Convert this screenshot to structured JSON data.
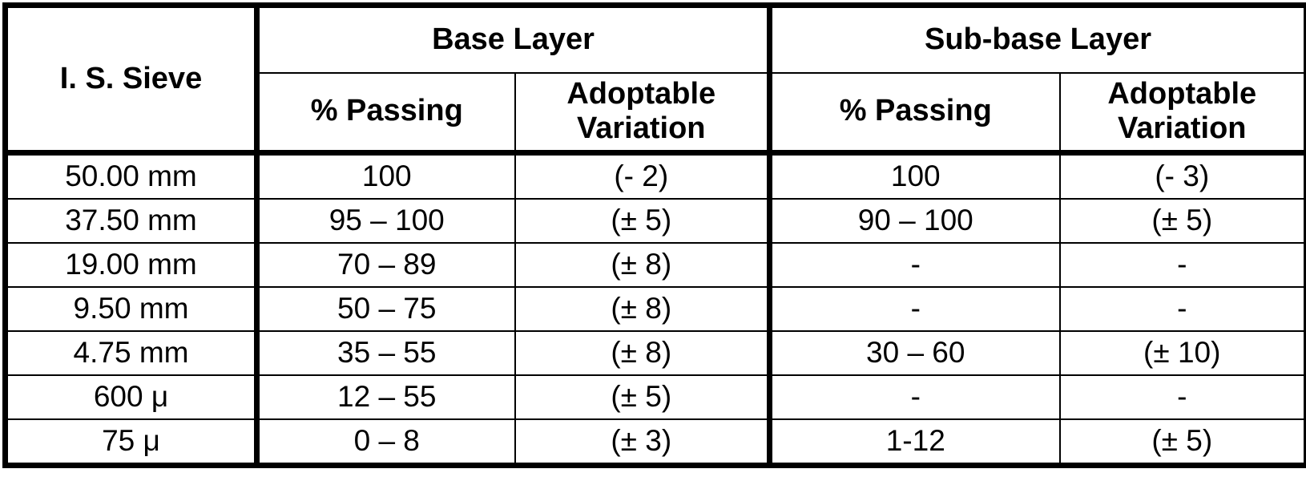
{
  "header": {
    "sieve": "I. S. Sieve",
    "groups": [
      "Base Layer",
      "Sub-base Layer"
    ],
    "subheaders": [
      "% Passing",
      "Adoptable Variation",
      "% Passing",
      "Adoptable Variation"
    ]
  },
  "table": {
    "rows": [
      [
        "50.00 mm",
        "100",
        "(- 2)",
        "100",
        "(- 3)"
      ],
      [
        "37.50 mm",
        "95 – 100",
        "(± 5)",
        "90 – 100",
        "(± 5)"
      ],
      [
        "19.00 mm",
        "70 – 89",
        "(± 8)",
        "-",
        "-"
      ],
      [
        "9.50 mm",
        "50 – 75",
        "(± 8)",
        "-",
        "-"
      ],
      [
        "4.75 mm",
        "35 – 55",
        "(± 8)",
        "30 – 60",
        "(± 10)"
      ],
      [
        "600 μ",
        "12 – 55",
        "(± 5)",
        "-",
        "-"
      ],
      [
        "75 μ",
        "0 – 8",
        "(± 3)",
        "1-12",
        "(± 5)"
      ]
    ]
  }
}
